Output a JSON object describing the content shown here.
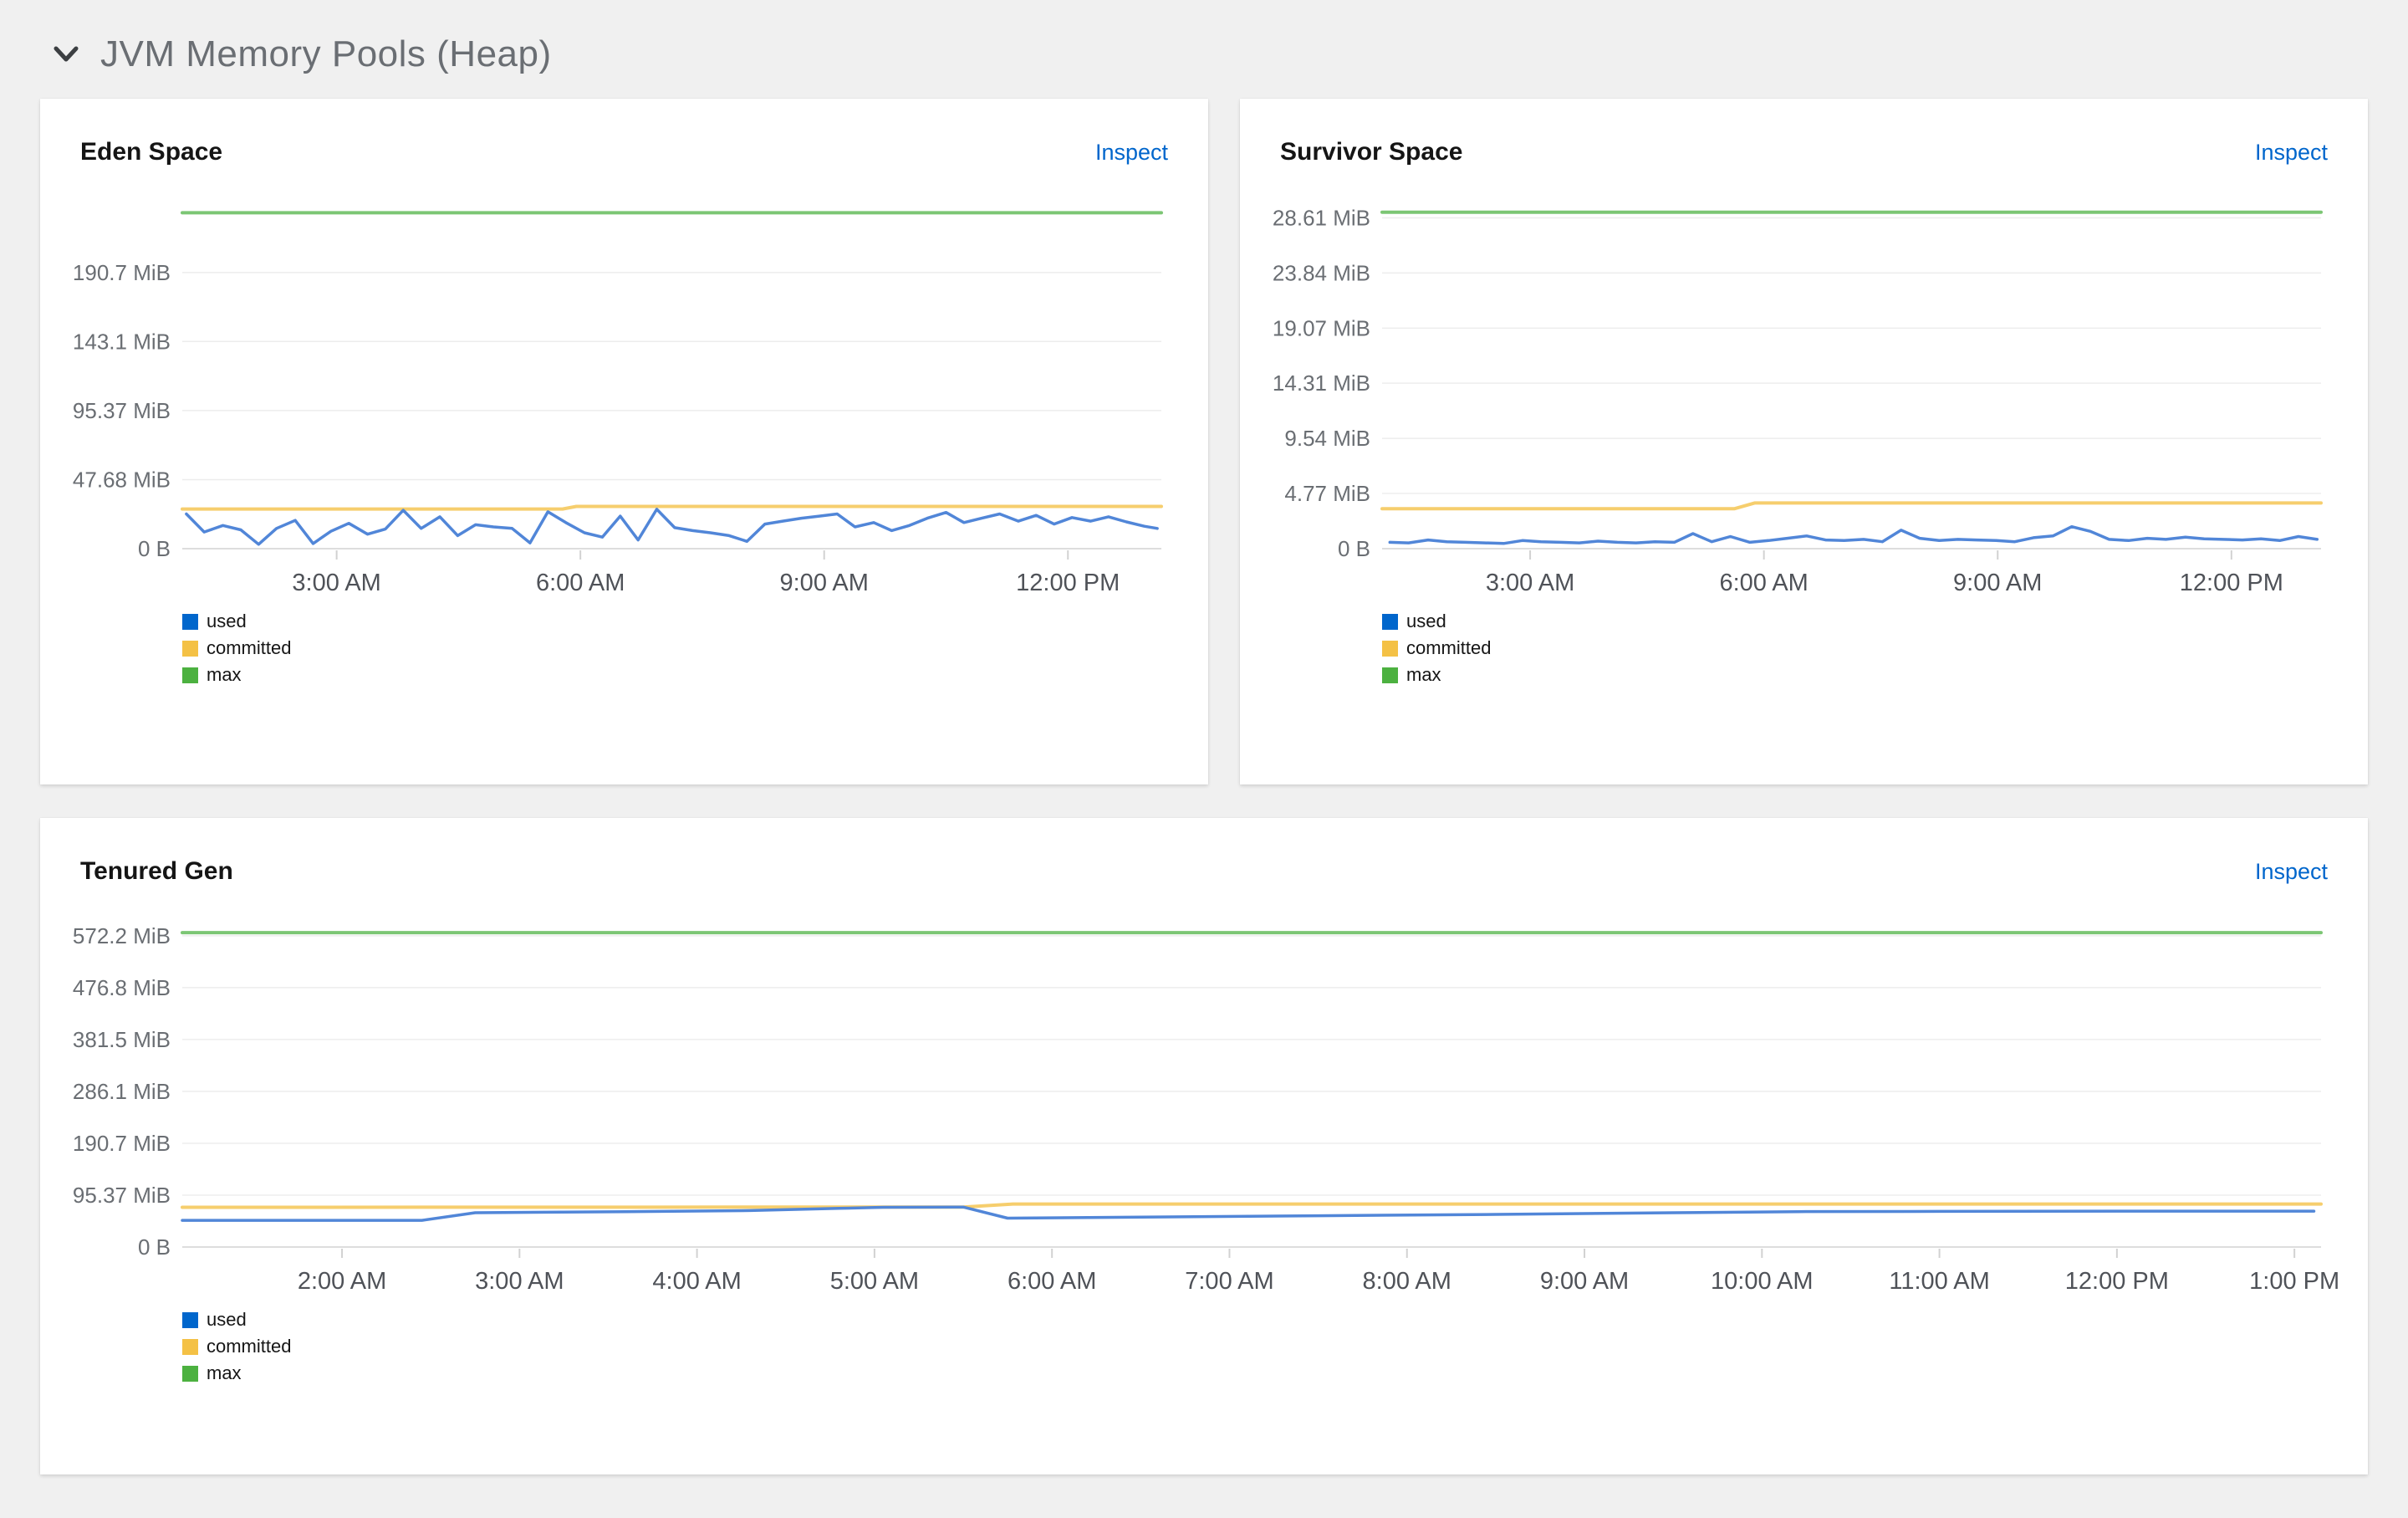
{
  "section": {
    "title": "JVM Memory Pools (Heap)"
  },
  "panels": [
    {
      "title": "Eden Space",
      "inspect_label": "Inspect"
    },
    {
      "title": "Survivor Space",
      "inspect_label": "Inspect"
    },
    {
      "title": "Tenured Gen",
      "inspect_label": "Inspect"
    }
  ],
  "legend": {
    "items": [
      {
        "label": "used",
        "color": "#0066cc"
      },
      {
        "label": "committed",
        "color": "#f4c145"
      },
      {
        "label": "max",
        "color": "#4cb140"
      }
    ]
  },
  "colors": {
    "grid": "#ededed",
    "axis": "#d2d2d2",
    "y_tick_text": "#6a6e73",
    "x_tick_text": "#4f5258",
    "used_line": "#5186d8",
    "committed_line": "#f6ce6d",
    "max_line": "#7cc674"
  },
  "chart_data": [
    {
      "type": "line",
      "title": "Eden Space",
      "unit": "MiB",
      "xdomain": [
        1.1,
        13.15
      ],
      "ylim": [
        0,
        238
      ],
      "grid": true,
      "legend_position": "bottom-left",
      "yticks": [
        {
          "v": 0,
          "label": "0 B"
        },
        {
          "v": 47.68,
          "label": "47.68 MiB"
        },
        {
          "v": 95.37,
          "label": "95.37 MiB"
        },
        {
          "v": 143.1,
          "label": "143.1 MiB"
        },
        {
          "v": 190.7,
          "label": "190.7 MiB"
        }
      ],
      "xticks": [
        {
          "v": 3,
          "label": "3:00 AM"
        },
        {
          "v": 6,
          "label": "6:00 AM"
        },
        {
          "v": 9,
          "label": "9:00 AM"
        },
        {
          "v": 12,
          "label": "12:00 PM"
        }
      ],
      "series": [
        {
          "name": "max",
          "color": "#7cc674",
          "width": 4,
          "points": [
            [
              1.1,
              232
            ],
            [
              13.15,
              232
            ]
          ]
        },
        {
          "name": "committed",
          "color": "#f6ce6d",
          "width": 4,
          "points": [
            [
              1.1,
              27.4
            ],
            [
              5.78,
              27.4
            ],
            [
              5.95,
              29.2
            ],
            [
              13.15,
              29.2
            ]
          ]
        },
        {
          "name": "used",
          "color": "#5186d8",
          "width": 3.5,
          "points": [
            [
              1.15,
              24
            ],
            [
              1.37,
              11.5
            ],
            [
              1.6,
              16
            ],
            [
              1.82,
              13
            ],
            [
              2.04,
              3
            ],
            [
              2.26,
              14
            ],
            [
              2.49,
              19.5
            ],
            [
              2.71,
              3.5
            ],
            [
              2.93,
              12
            ],
            [
              3.15,
              17.5
            ],
            [
              3.38,
              10
            ],
            [
              3.6,
              13.5
            ],
            [
              3.82,
              26.5
            ],
            [
              4.04,
              14
            ],
            [
              4.27,
              22
            ],
            [
              4.49,
              9
            ],
            [
              4.71,
              16.5
            ],
            [
              4.93,
              15
            ],
            [
              5.16,
              14
            ],
            [
              5.38,
              4
            ],
            [
              5.6,
              25.5
            ],
            [
              5.82,
              18
            ],
            [
              6.05,
              11
            ],
            [
              6.27,
              8
            ],
            [
              6.49,
              22.5
            ],
            [
              6.71,
              6
            ],
            [
              6.94,
              27.2
            ],
            [
              7.16,
              14.5
            ],
            [
              7.38,
              12.5
            ],
            [
              7.6,
              11
            ],
            [
              7.83,
              9
            ],
            [
              8.05,
              5
            ],
            [
              8.27,
              17
            ],
            [
              8.49,
              19
            ],
            [
              8.72,
              21
            ],
            [
              8.94,
              22.5
            ],
            [
              9.16,
              24
            ],
            [
              9.38,
              15
            ],
            [
              9.61,
              18
            ],
            [
              9.83,
              12.5
            ],
            [
              10.05,
              16
            ],
            [
              10.27,
              21
            ],
            [
              10.5,
              25
            ],
            [
              10.72,
              18
            ],
            [
              10.94,
              21
            ],
            [
              11.16,
              24
            ],
            [
              11.39,
              19
            ],
            [
              11.61,
              23
            ],
            [
              11.83,
              17
            ],
            [
              12.05,
              21.5
            ],
            [
              12.28,
              19
            ],
            [
              12.5,
              22
            ],
            [
              12.72,
              18.5
            ],
            [
              12.94,
              15.5
            ],
            [
              13.1,
              14
            ]
          ]
        }
      ]
    },
    {
      "type": "line",
      "title": "Survivor Space",
      "unit": "MiB",
      "xdomain": [
        1.1,
        13.15
      ],
      "ylim": [
        0,
        29.8
      ],
      "grid": true,
      "legend_position": "bottom-left",
      "yticks": [
        {
          "v": 0,
          "label": "0 B"
        },
        {
          "v": 4.77,
          "label": "4.77 MiB"
        },
        {
          "v": 9.54,
          "label": "9.54 MiB"
        },
        {
          "v": 14.31,
          "label": "14.31 MiB"
        },
        {
          "v": 19.07,
          "label": "19.07 MiB"
        },
        {
          "v": 23.84,
          "label": "23.84 MiB"
        },
        {
          "v": 28.61,
          "label": "28.61 MiB"
        }
      ],
      "xticks": [
        {
          "v": 3,
          "label": "3:00 AM"
        },
        {
          "v": 6,
          "label": "6:00 AM"
        },
        {
          "v": 9,
          "label": "9:00 AM"
        },
        {
          "v": 12,
          "label": "12:00 PM"
        }
      ],
      "series": [
        {
          "name": "max",
          "color": "#7cc674",
          "width": 4,
          "points": [
            [
              1.1,
              29.1
            ],
            [
              13.15,
              29.1
            ]
          ]
        },
        {
          "name": "committed",
          "color": "#f6ce6d",
          "width": 4,
          "points": [
            [
              1.1,
              3.45
            ],
            [
              5.62,
              3.45
            ],
            [
              5.88,
              3.95
            ],
            [
              13.15,
              3.95
            ]
          ]
        },
        {
          "name": "used",
          "color": "#5186d8",
          "width": 3.5,
          "points": [
            [
              1.2,
              0.55
            ],
            [
              1.44,
              0.5
            ],
            [
              1.69,
              0.75
            ],
            [
              1.93,
              0.6
            ],
            [
              2.17,
              0.55
            ],
            [
              2.42,
              0.5
            ],
            [
              2.66,
              0.45
            ],
            [
              2.9,
              0.7
            ],
            [
              3.14,
              0.6
            ],
            [
              3.39,
              0.55
            ],
            [
              3.63,
              0.5
            ],
            [
              3.87,
              0.65
            ],
            [
              4.12,
              0.55
            ],
            [
              4.36,
              0.5
            ],
            [
              4.6,
              0.6
            ],
            [
              4.85,
              0.55
            ],
            [
              5.09,
              1.3
            ],
            [
              5.33,
              0.6
            ],
            [
              5.57,
              1.05
            ],
            [
              5.82,
              0.55
            ],
            [
              6.06,
              0.7
            ],
            [
              6.3,
              0.9
            ],
            [
              6.55,
              1.1
            ],
            [
              6.79,
              0.75
            ],
            [
              7.03,
              0.7
            ],
            [
              7.28,
              0.8
            ],
            [
              7.52,
              0.6
            ],
            [
              7.76,
              1.6
            ],
            [
              8.0,
              0.9
            ],
            [
              8.25,
              0.7
            ],
            [
              8.49,
              0.8
            ],
            [
              8.73,
              0.75
            ],
            [
              8.98,
              0.7
            ],
            [
              9.22,
              0.6
            ],
            [
              9.46,
              0.95
            ],
            [
              9.71,
              1.1
            ],
            [
              9.95,
              1.9
            ],
            [
              10.19,
              1.5
            ],
            [
              10.43,
              0.8
            ],
            [
              10.68,
              0.7
            ],
            [
              10.92,
              0.9
            ],
            [
              11.16,
              0.8
            ],
            [
              11.41,
              1.0
            ],
            [
              11.65,
              0.85
            ],
            [
              11.89,
              0.8
            ],
            [
              12.14,
              0.75
            ],
            [
              12.38,
              0.85
            ],
            [
              12.62,
              0.7
            ],
            [
              12.86,
              1.05
            ],
            [
              13.1,
              0.8
            ]
          ]
        }
      ]
    },
    {
      "type": "line",
      "title": "Tenured Gen",
      "unit": "MiB",
      "xdomain": [
        1.1,
        13.15
      ],
      "ylim": [
        0,
        595
      ],
      "grid": true,
      "legend_position": "bottom-left",
      "yticks": [
        {
          "v": 0,
          "label": "0 B"
        },
        {
          "v": 95.37,
          "label": "95.37 MiB"
        },
        {
          "v": 190.7,
          "label": "190.7 MiB"
        },
        {
          "v": 286.1,
          "label": "286.1 MiB"
        },
        {
          "v": 381.5,
          "label": "381.5 MiB"
        },
        {
          "v": 476.8,
          "label": "476.8 MiB"
        },
        {
          "v": 572.2,
          "label": "572.2 MiB"
        }
      ],
      "xticks": [
        {
          "v": 2,
          "label": "2:00 AM"
        },
        {
          "v": 3,
          "label": "3:00 AM"
        },
        {
          "v": 4,
          "label": "4:00 AM"
        },
        {
          "v": 5,
          "label": "5:00 AM"
        },
        {
          "v": 6,
          "label": "6:00 AM"
        },
        {
          "v": 7,
          "label": "7:00 AM"
        },
        {
          "v": 8,
          "label": "8:00 AM"
        },
        {
          "v": 9,
          "label": "9:00 AM"
        },
        {
          "v": 10,
          "label": "10:00 AM"
        },
        {
          "v": 11,
          "label": "11:00 AM"
        },
        {
          "v": 12,
          "label": "12:00 PM"
        },
        {
          "v": 13,
          "label": "1:00 PM"
        }
      ],
      "series": [
        {
          "name": "max",
          "color": "#7cc674",
          "width": 4,
          "points": [
            [
              1.1,
              578
            ],
            [
              13.15,
              578
            ]
          ]
        },
        {
          "name": "committed",
          "color": "#f6ce6d",
          "width": 4,
          "points": [
            [
              1.1,
              73
            ],
            [
              5.5,
              73.5
            ],
            [
              5.78,
              79
            ],
            [
              13.15,
              79
            ]
          ]
        },
        {
          "name": "used",
          "color": "#5186d8",
          "width": 3.5,
          "points": [
            [
              1.1,
              49
            ],
            [
              2.45,
              49
            ],
            [
              2.75,
              63
            ],
            [
              3.6,
              65
            ],
            [
              4.3,
              67
            ],
            [
              4.8,
              71
            ],
            [
              5.05,
              73
            ],
            [
              5.5,
              73.5
            ],
            [
              5.75,
              53
            ],
            [
              6.5,
              55
            ],
            [
              7.5,
              57.5
            ],
            [
              8.5,
              60
            ],
            [
              9.5,
              63
            ],
            [
              10.2,
              65
            ],
            [
              11,
              65.5
            ],
            [
              12,
              66
            ],
            [
              13.11,
              66
            ]
          ]
        }
      ]
    }
  ]
}
